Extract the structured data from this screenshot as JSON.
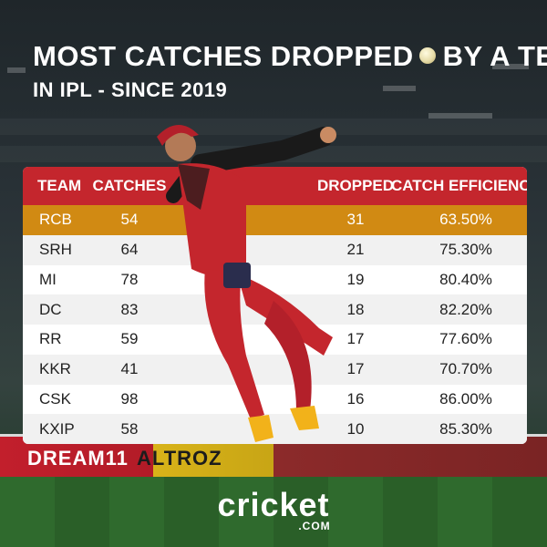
{
  "title": {
    "line1_part1": "MOST CATCHES DROPPED",
    "line1_part2": "BY A TEAM",
    "line2": "IN IPL - SINCE 2019"
  },
  "icons": {
    "ball": "cricket-ball-icon"
  },
  "table": {
    "headers": {
      "team": "TEAM",
      "catches": "CATCHES",
      "dropped": "DROPPED",
      "efficiency": "CATCH EFFICIENCY"
    },
    "rows": [
      {
        "team": "RCB",
        "catches": "54",
        "dropped": "31",
        "efficiency": "63.50%"
      },
      {
        "team": "SRH",
        "catches": "64",
        "dropped": "21",
        "efficiency": "75.30%"
      },
      {
        "team": "MI",
        "catches": "78",
        "dropped": "19",
        "efficiency": "80.40%"
      },
      {
        "team": "DC",
        "catches": "83",
        "dropped": "18",
        "efficiency": "82.20%"
      },
      {
        "team": "RR",
        "catches": "59",
        "dropped": "17",
        "efficiency": "77.60%"
      },
      {
        "team": "KKR",
        "catches": "41",
        "dropped": "17",
        "efficiency": "70.70%"
      },
      {
        "team": "CSK",
        "catches": "98",
        "dropped": "16",
        "efficiency": "86.00%"
      },
      {
        "team": "KXIP",
        "catches": "58",
        "dropped": "10",
        "efficiency": "85.30%"
      }
    ]
  },
  "ads": {
    "left": "DREAM11",
    "middle": "ALTROZ"
  },
  "logo": {
    "main": "cricket",
    "sub": ".COM"
  },
  "colors": {
    "header_red": "#c4262d",
    "highlight_orange": "#d18a13"
  }
}
